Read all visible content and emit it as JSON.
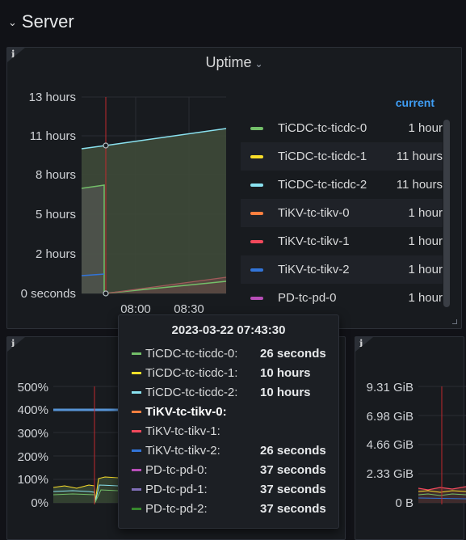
{
  "row": {
    "title": "Server",
    "chevron_icon": "chevron-down-icon"
  },
  "uptime_panel": {
    "title": "Uptime",
    "info_label": "i",
    "legend_header": "current",
    "legend": [
      {
        "name": "TiCDC-tc-ticdc-0",
        "value": "1 hour",
        "color": "#73bf69"
      },
      {
        "name": "TiCDC-tc-ticdc-1",
        "value": "11 hours",
        "color": "#fade2a"
      },
      {
        "name": "TiCDC-tc-ticdc-2",
        "value": "11 hours",
        "color": "#8ae2f0"
      },
      {
        "name": "TiKV-tc-tikv-0",
        "value": "1 hour",
        "color": "#ff7f3f"
      },
      {
        "name": "TiKV-tc-tikv-1",
        "value": "1 hour",
        "color": "#f2495c"
      },
      {
        "name": "TiKV-tc-tikv-2",
        "value": "1 hour",
        "color": "#3274d9"
      },
      {
        "name": "PD-tc-pd-0",
        "value": "1 hour",
        "color": "#b84eb8"
      }
    ]
  },
  "chart_data": [
    {
      "type": "area",
      "title": "Uptime",
      "y_ticks": [
        "13 hours",
        "11 hours",
        "8 hours",
        "5 hours",
        "2 hours",
        "0 seconds"
      ],
      "x_ticks": [
        "08:00",
        "08:30"
      ],
      "ylim_hours": [
        0,
        13
      ],
      "series": [
        {
          "name": "TiCDC-tc-ticdc-2",
          "x": [
            "07:25",
            "07:43",
            "08:45"
          ],
          "y_hours": [
            9.5,
            9.8,
            11.1
          ]
        },
        {
          "name": "TiCDC-tc-ticdc-1",
          "x": [
            "07:25",
            "07:43",
            "08:45"
          ],
          "y_hours": [
            9.5,
            9.8,
            11.1
          ]
        },
        {
          "name": "TiCDC-tc-ticdc-0",
          "x": [
            "07:25",
            "07:42",
            "07:43",
            "08:45"
          ],
          "y_hours": [
            7.0,
            7.2,
            0.0,
            1.0
          ]
        },
        {
          "name": "TiKV-tc-tikv-0",
          "x": [
            "07:43",
            "08:45"
          ],
          "y_hours": [
            0.0,
            1.0
          ]
        }
      ]
    },
    {
      "type": "line",
      "y_ticks": [
        "500%",
        "400%",
        "300%",
        "200%",
        "100%",
        "0%"
      ],
      "series": [
        {
          "name": "blue",
          "y_percent": [
            400,
            400,
            400,
            400
          ]
        }
      ]
    },
    {
      "type": "line",
      "y_ticks": [
        "9.31 GiB",
        "6.98 GiB",
        "4.66 GiB",
        "2.33 GiB",
        "0 B"
      ]
    }
  ],
  "tooltip": {
    "time": "2023-03-22 07:43:30",
    "rows": [
      {
        "name": "TiCDC-tc-ticdc-0:",
        "value": "26 seconds",
        "color": "#73bf69",
        "highlight": false
      },
      {
        "name": "TiCDC-tc-ticdc-1:",
        "value": "10 hours",
        "color": "#fade2a",
        "highlight": false
      },
      {
        "name": "TiCDC-tc-ticdc-2:",
        "value": "10 hours",
        "color": "#8ae2f0",
        "highlight": false
      },
      {
        "name": "TiKV-tc-tikv-0:",
        "value": "",
        "color": "#ff7f3f",
        "highlight": true
      },
      {
        "name": "TiKV-tc-tikv-1:",
        "value": "",
        "color": "#f2495c",
        "highlight": false
      },
      {
        "name": "TiKV-tc-tikv-2:",
        "value": "26 seconds",
        "color": "#3274d9",
        "highlight": false
      },
      {
        "name": "PD-tc-pd-0:",
        "value": "37 seconds",
        "color": "#b84eb8",
        "highlight": false
      },
      {
        "name": "PD-tc-pd-1:",
        "value": "37 seconds",
        "color": "#806eb7",
        "highlight": false
      },
      {
        "name": "PD-tc-pd-2:",
        "value": "37 seconds",
        "color": "#37872d",
        "highlight": false
      }
    ]
  },
  "panels": {
    "left_info": "i",
    "right_info": "i"
  }
}
